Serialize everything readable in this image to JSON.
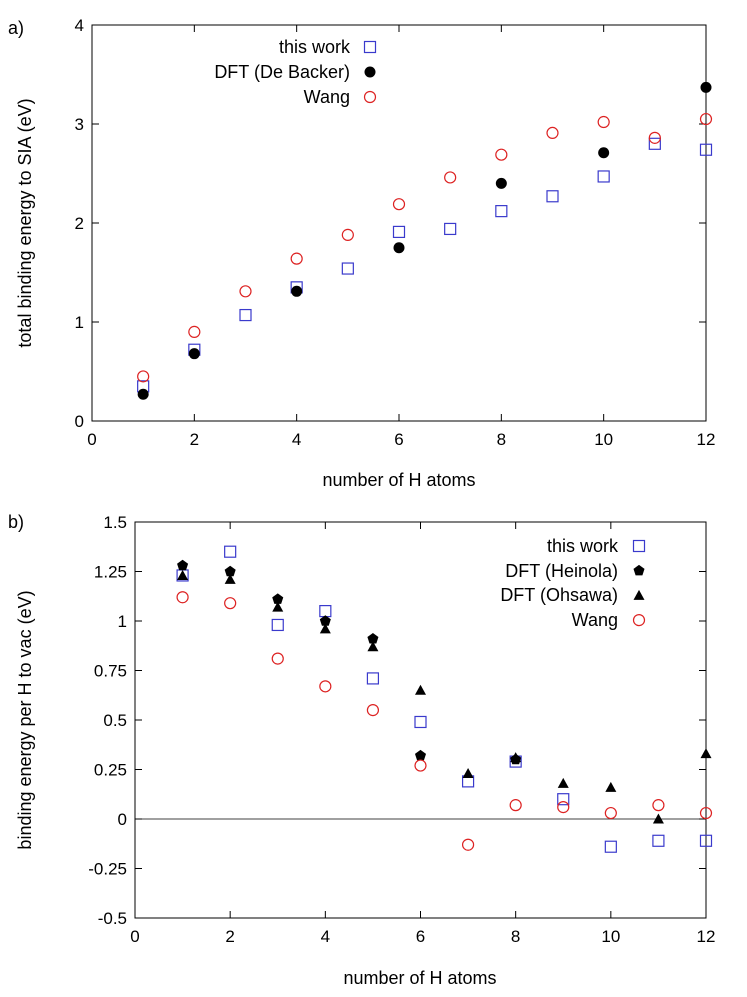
{
  "chart_data": [
    {
      "panel_label": "a)",
      "type": "scatter",
      "xlabel": "number of H atoms",
      "ylabel": "total binding energy to SIA (eV)",
      "xlim": [
        0,
        12
      ],
      "ylim": [
        0,
        4
      ],
      "xticks": [
        0,
        2,
        4,
        6,
        8,
        10,
        12
      ],
      "yticks": [
        0,
        1,
        2,
        3,
        4
      ],
      "x_tick_labels": [
        "0",
        "2",
        "4",
        "6",
        "8",
        "10",
        "12"
      ],
      "y_tick_labels": [
        "0",
        "1",
        "2",
        "3",
        "4"
      ],
      "legend_position": "top-left",
      "series": [
        {
          "name": "this work",
          "marker": "open-square",
          "color": "#3a3acc",
          "x": [
            1,
            2,
            3,
            4,
            5,
            6,
            7,
            8,
            9,
            10,
            11,
            12
          ],
          "y": [
            0.35,
            0.72,
            1.07,
            1.35,
            1.54,
            1.91,
            1.94,
            2.12,
            2.27,
            2.47,
            2.8,
            2.74
          ]
        },
        {
          "name": "DFT (De Backer)",
          "marker": "filled-circle",
          "color": "#000000",
          "x": [
            1,
            2,
            4,
            6,
            8,
            10,
            12
          ],
          "y": [
            0.27,
            0.68,
            1.31,
            1.75,
            2.4,
            2.71,
            3.37
          ]
        },
        {
          "name": "Wang",
          "marker": "open-circle",
          "color": "#dd2222",
          "x": [
            1,
            2,
            3,
            4,
            5,
            6,
            7,
            8,
            9,
            10,
            11,
            12
          ],
          "y": [
            0.45,
            0.9,
            1.31,
            1.64,
            1.88,
            2.19,
            2.46,
            2.69,
            2.91,
            3.02,
            2.86,
            3.05
          ]
        }
      ]
    },
    {
      "panel_label": "b)",
      "type": "scatter",
      "xlabel": "number of H atoms",
      "ylabel": "binding energy per H to vac (eV)",
      "xlim": [
        0,
        12
      ],
      "ylim": [
        -0.5,
        1.5
      ],
      "xticks": [
        0,
        2,
        4,
        6,
        8,
        10,
        12
      ],
      "yticks": [
        -0.5,
        -0.25,
        0,
        0.25,
        0.5,
        0.75,
        1,
        1.25,
        1.5
      ],
      "x_tick_labels": [
        "0",
        "2",
        "4",
        "6",
        "8",
        "10",
        "12"
      ],
      "y_tick_labels": [
        "-0.5",
        "-0.25",
        "0",
        "0.25",
        "0.5",
        "0.75",
        "1",
        "1.25",
        "1.5"
      ],
      "zero_line": true,
      "legend_position": "top-right",
      "series": [
        {
          "name": "this work",
          "marker": "open-square",
          "color": "#3a3acc",
          "x": [
            1,
            2,
            3,
            4,
            5,
            6,
            7,
            8,
            9,
            10,
            11,
            12
          ],
          "y": [
            1.23,
            1.35,
            0.98,
            1.05,
            0.71,
            0.49,
            0.19,
            0.29,
            0.1,
            -0.14,
            -0.11,
            -0.11
          ]
        },
        {
          "name": "DFT (Heinola)",
          "marker": "filled-pentagon",
          "color": "#000000",
          "x": [
            1,
            2,
            3,
            4,
            5,
            6,
            8
          ],
          "y": [
            1.28,
            1.25,
            1.11,
            1.0,
            0.91,
            0.32,
            0.3
          ]
        },
        {
          "name": "DFT (Ohsawa)",
          "marker": "filled-triangle",
          "color": "#000000",
          "x": [
            1,
            2,
            3,
            4,
            5,
            6,
            7,
            8,
            9,
            10,
            11,
            12
          ],
          "y": [
            1.23,
            1.21,
            1.07,
            0.96,
            0.87,
            0.65,
            0.23,
            0.31,
            0.18,
            0.16,
            0.0,
            0.33
          ]
        },
        {
          "name": "Wang",
          "marker": "open-circle",
          "color": "#dd2222",
          "x": [
            1,
            2,
            3,
            4,
            5,
            6,
            7,
            8,
            9,
            10,
            11,
            12
          ],
          "y": [
            1.12,
            1.09,
            0.81,
            0.67,
            0.55,
            0.27,
            -0.13,
            0.07,
            0.06,
            0.03,
            0.07,
            0.03
          ]
        }
      ]
    }
  ]
}
